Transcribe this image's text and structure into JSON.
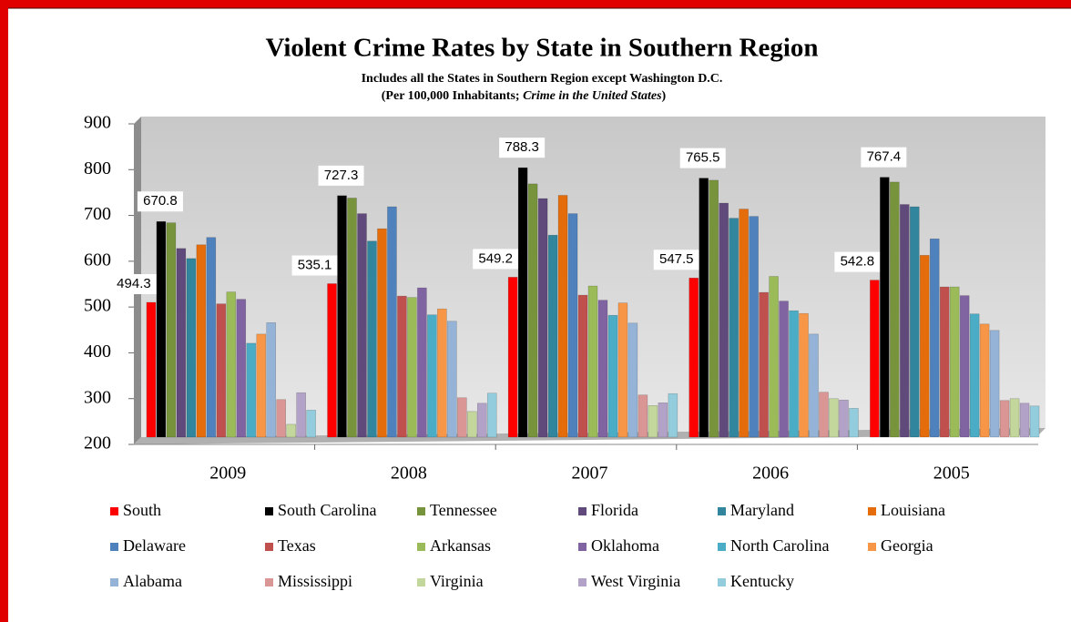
{
  "chart_data": {
    "type": "bar",
    "title": "Violent Crime Rates by State in Southern Region",
    "subtitle": "Includes all the States in Southern Region except Washington D.C.",
    "subtitle2": [
      {
        "text": "(Per 100,000 Inhabitants; ",
        "italic": false
      },
      {
        "text": "Crime in the United States",
        "italic": true
      },
      {
        "text": ")",
        "italic": false
      }
    ],
    "categories": [
      "2009",
      "2008",
      "2007",
      "2006",
      "2005"
    ],
    "ylim": [
      200,
      900
    ],
    "yticks": [
      200,
      300,
      400,
      500,
      600,
      700,
      800,
      900
    ],
    "series": [
      {
        "name": "South",
        "color": "#ff0000",
        "data_labels": true,
        "values": [
          494.3,
          535.1,
          549.2,
          547.5,
          542.8
        ]
      },
      {
        "name": "South Carolina",
        "color": "#000000",
        "data_labels": true,
        "values": [
          670.8,
          727.3,
          788.3,
          765.5,
          767.4
        ]
      },
      {
        "name": "Tennessee",
        "color": "#77933c",
        "values": [
          668,
          722,
          753,
          761,
          757
        ]
      },
      {
        "name": "Florida",
        "color": "#604a7b",
        "values": [
          612,
          688,
          721,
          711,
          708
        ]
      },
      {
        "name": "Maryland",
        "color": "#31859c",
        "values": [
          590,
          628,
          641,
          678,
          703
        ]
      },
      {
        "name": "Louisiana",
        "color": "#e46c0a",
        "values": [
          620,
          655,
          728,
          698,
          597
        ]
      },
      {
        "name": "Delaware",
        "color": "#4f81bd",
        "values": [
          636,
          703,
          688,
          682,
          633
        ]
      },
      {
        "name": "Texas",
        "color": "#c0504d",
        "values": [
          491,
          508,
          510,
          516,
          528
        ]
      },
      {
        "name": "Arkansas",
        "color": "#9bbb59",
        "values": [
          517,
          505,
          530,
          551,
          528
        ]
      },
      {
        "name": "Oklahoma",
        "color": "#8064a2",
        "values": [
          501,
          526,
          499,
          497,
          509
        ]
      },
      {
        "name": "North Carolina",
        "color": "#4bacc6",
        "values": [
          405,
          467,
          466,
          476,
          469
        ]
      },
      {
        "name": "Georgia",
        "color": "#f79646",
        "values": [
          425,
          480,
          493,
          470,
          447
        ]
      },
      {
        "name": "Alabama",
        "color": "#95b3d7",
        "values": [
          450,
          453,
          449,
          425,
          433
        ]
      },
      {
        "name": "Mississippi",
        "color": "#d99694",
        "values": [
          282,
          286,
          292,
          298,
          280
        ]
      },
      {
        "name": "Virginia",
        "color": "#c3d69b",
        "values": [
          228,
          256,
          269,
          284,
          284
        ]
      },
      {
        "name": "West Virginia",
        "color": "#b3a2c7",
        "values": [
          297,
          274,
          275,
          281,
          274
        ]
      },
      {
        "name": "Kentucky",
        "color": "#93cddd",
        "values": [
          259,
          296,
          295,
          263,
          268
        ]
      }
    ],
    "grid": false,
    "legend": "bottom"
  }
}
